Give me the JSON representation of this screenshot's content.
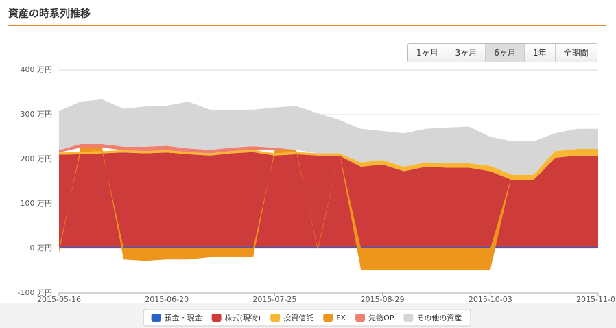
{
  "page_title": "資産の時系列推移",
  "range_buttons": [
    "1ヶ月",
    "3ヶ月",
    "6ヶ月",
    "1年",
    "全期間"
  ],
  "active_button": 2,
  "chart_data": {
    "type": "stacked-area",
    "x": [
      "2015-05-16",
      "2015-05-23",
      "2015-05-30",
      "2015-06-06",
      "2015-06-13",
      "2015-06-20",
      "2015-06-27",
      "2015-07-04",
      "2015-07-11",
      "2015-07-18",
      "2015-07-25",
      "2015-08-01",
      "2015-08-08",
      "2015-08-15",
      "2015-08-22",
      "2015-08-29",
      "2015-09-05",
      "2015-09-12",
      "2015-09-19",
      "2015-09-26",
      "2015-10-03",
      "2015-10-10",
      "2015-10-17",
      "2015-10-24",
      "2015-10-31",
      "2015-11-07"
    ],
    "xlim": [
      "2015-05-16",
      "2015-11-07"
    ],
    "xticks": [
      "2015-05-16",
      "2015-06-20",
      "2015-07-25",
      "2015-08-29",
      "2015-10-03",
      "2015-11-07"
    ],
    "ylim": [
      -100,
      400
    ],
    "yticks": [
      {
        "value": -100,
        "label": "-100 万円"
      },
      {
        "value": 0,
        "label": "0 万円"
      },
      {
        "value": 100,
        "label": "100 万円"
      },
      {
        "value": 200,
        "label": "200 万円"
      },
      {
        "value": 300,
        "label": "300 万円"
      },
      {
        "value": 400,
        "label": "400 万円"
      }
    ],
    "grid": true,
    "legend": "bottom",
    "series": [
      {
        "name": "預金・現金",
        "color": "#2a62c9",
        "values": [
          3,
          3,
          3,
          3,
          3,
          3,
          3,
          3,
          3,
          3,
          3,
          3,
          3,
          3,
          3,
          3,
          3,
          3,
          3,
          3,
          3,
          3,
          3,
          3,
          3,
          3
        ]
      },
      {
        "name": "株式(現物)",
        "color": "#cd3b3b",
        "values": [
          207,
          208,
          210,
          212,
          210,
          212,
          208,
          205,
          210,
          213,
          205,
          208,
          205,
          205,
          180,
          185,
          170,
          180,
          178,
          178,
          170,
          150,
          150,
          200,
          205,
          205
        ]
      },
      {
        "name": "投資信託",
        "color": "#f9b731",
        "values": [
          5,
          5,
          5,
          5,
          5,
          5,
          5,
          5,
          5,
          5,
          5,
          5,
          5,
          5,
          10,
          10,
          10,
          10,
          10,
          10,
          12,
          12,
          12,
          15,
          15,
          15
        ]
      },
      {
        "name": "FX",
        "color": "#ee951c",
        "values": [
          -10,
          10,
          8,
          -25,
          -28,
          -25,
          -25,
          -20,
          -20,
          -20,
          8,
          5,
          -5,
          0,
          -48,
          -48,
          -48,
          -48,
          -48,
          -48,
          -48,
          0,
          0,
          0,
          0,
          0
        ]
      },
      {
        "name": "先物OP",
        "color": "#ef8070",
        "values": [
          5,
          8,
          8,
          8,
          10,
          10,
          8,
          8,
          8,
          8,
          5,
          0,
          0,
          0,
          0,
          0,
          0,
          0,
          0,
          0,
          0,
          0,
          0,
          0,
          0,
          0
        ]
      },
      {
        "name": "その他の資産",
        "color": "#d6d6d6",
        "values": [
          88,
          95,
          100,
          85,
          90,
          90,
          105,
          90,
          85,
          82,
          90,
          98,
          90,
          75,
          75,
          65,
          75,
          75,
          80,
          82,
          65,
          75,
          75,
          40,
          45,
          45
        ]
      }
    ]
  }
}
